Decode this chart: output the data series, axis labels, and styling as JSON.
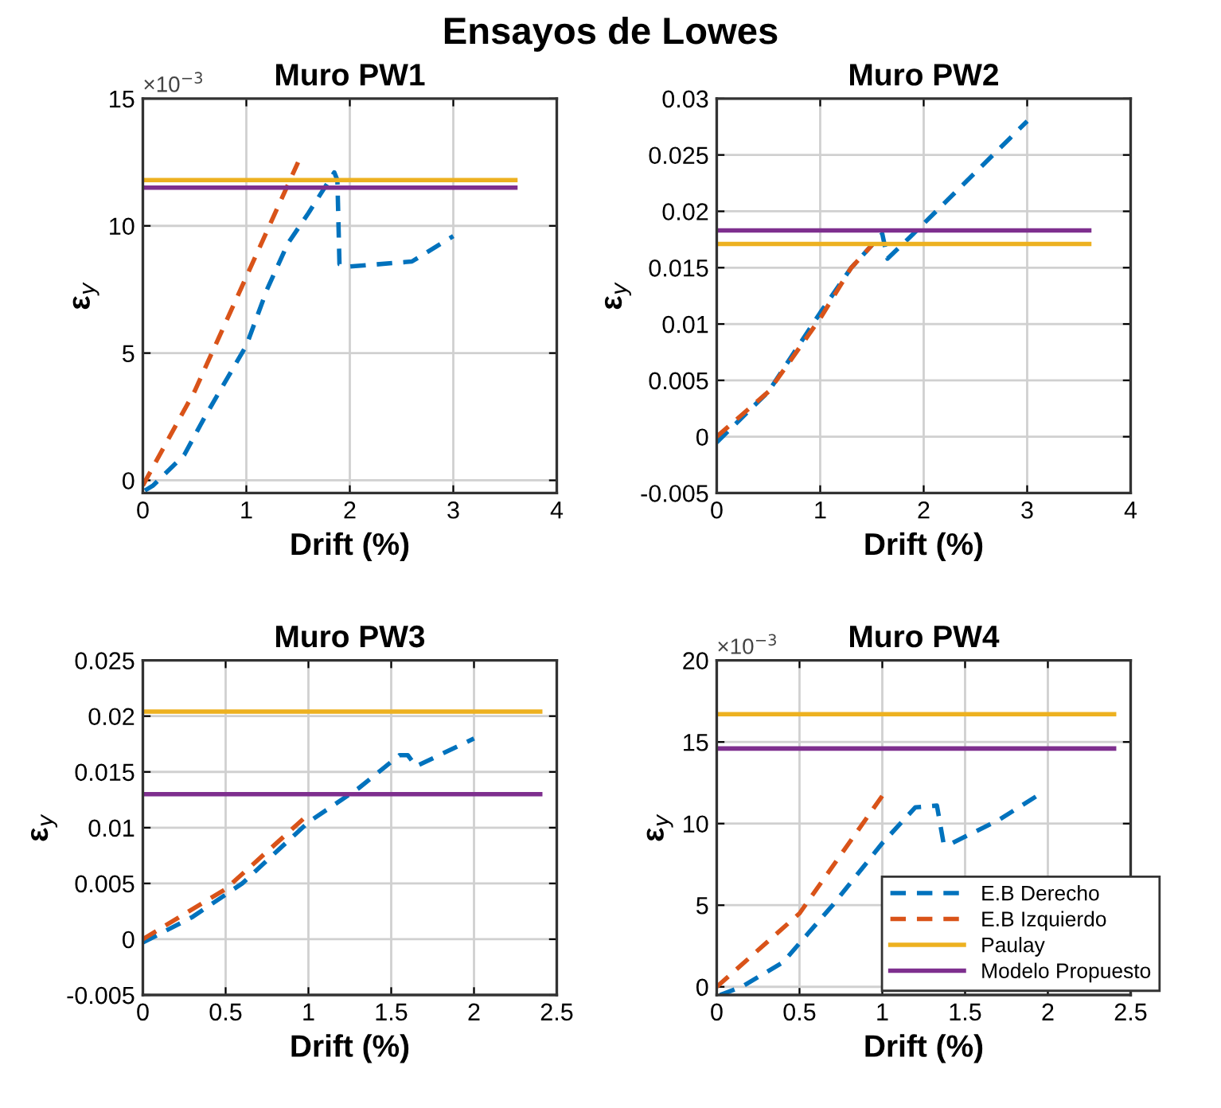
{
  "chart_data": [
    {
      "type": "line",
      "title": "Muro PW1",
      "xlabel": "Drift (%)",
      "ylabel": "ε$_{y}$",
      "annotations": [
        "Ensayos de Lowes",
        "×10$^{−3}$"
      ],
      "xlim": [
        0,
        4
      ],
      "xticks": [
        0,
        1,
        2,
        3,
        4
      ],
      "ylim": [
        -0.5,
        15
      ],
      "yticks": [
        0,
        5,
        10,
        15
      ],
      "grid": true,
      "series": [
        {
          "color": "#0072bd",
          "line_style": "dashed",
          "x": [
            0.02,
            0.1,
            0.4,
            0.6,
            1.0,
            1.2,
            1.4,
            1.6,
            1.85,
            1.88,
            1.9,
            2.0,
            2.6,
            3.0
          ],
          "values": [
            -0.4,
            -0.2,
            1,
            2.5,
            5.3,
            7.5,
            9.3,
            10.5,
            12.1,
            11.8,
            8.5,
            8.4,
            8.6,
            9.6
          ]
        },
        {
          "color": "#d95319",
          "line_style": "dashed",
          "x": [
            0,
            0.5,
            1.0,
            1.5
          ],
          "values": [
            -0.2,
            3.5,
            8,
            12.5
          ]
        },
        {
          "color": "#edb120",
          "line_style": "solid",
          "x": [
            0,
            3.6
          ],
          "values": [
            11.8,
            11.8
          ]
        },
        {
          "color": "#7e2f8e",
          "line_style": "solid",
          "x": [
            0,
            3.6
          ],
          "values": [
            11.5,
            11.5
          ]
        }
      ]
    },
    {
      "type": "line",
      "title": "Muro PW2",
      "xlabel": "Drift (%)",
      "ylabel": "ε$_{y}$",
      "xlim": [
        0,
        4
      ],
      "xticks": [
        0,
        1,
        2,
        3,
        4
      ],
      "ylim": [
        -0.005,
        0.03
      ],
      "yticks": [
        -0.005,
        0,
        0.005,
        0.01,
        0.015,
        0.02,
        0.025,
        0.03
      ],
      "grid": true,
      "series": [
        {
          "color": "#0072bd",
          "line_style": "dashed",
          "x": [
            0,
            0.5,
            1.0,
            1.3,
            1.55,
            1.6,
            1.65,
            1.9,
            3.0
          ],
          "values": [
            -0.0005,
            0.004,
            0.011,
            0.015,
            0.0175,
            0.018,
            0.0158,
            0.018,
            0.028
          ]
        },
        {
          "color": "#d95319",
          "line_style": "dashed",
          "x": [
            0,
            0.5,
            1.0,
            1.3,
            1.5
          ],
          "values": [
            0,
            0.004,
            0.0105,
            0.015,
            0.017
          ]
        },
        {
          "color": "#edb120",
          "line_style": "solid",
          "x": [
            0,
            3.6
          ],
          "values": [
            0.0171,
            0.0171
          ]
        },
        {
          "color": "#7e2f8e",
          "line_style": "solid",
          "x": [
            0,
            3.6
          ],
          "values": [
            0.0183,
            0.0183
          ]
        }
      ]
    },
    {
      "type": "line",
      "title": "Muro PW3",
      "xlabel": "Drift (%)",
      "ylabel": "ε$_{y}$",
      "xlim": [
        0,
        2.5
      ],
      "xticks": [
        0,
        0.5,
        1,
        1.5,
        2,
        2.5
      ],
      "ylim": [
        -0.005,
        0.025
      ],
      "yticks": [
        -0.005,
        0,
        0.005,
        0.01,
        0.015,
        0.02,
        0.025
      ],
      "grid": true,
      "series": [
        {
          "color": "#0072bd",
          "line_style": "dashed",
          "x": [
            0,
            0.3,
            0.6,
            1.0,
            1.3,
            1.55,
            1.6,
            1.65,
            2.0
          ],
          "values": [
            -0.0003,
            0.002,
            0.005,
            0.0105,
            0.0135,
            0.0165,
            0.0165,
            0.0155,
            0.018
          ]
        },
        {
          "color": "#d95319",
          "line_style": "dashed",
          "x": [
            0,
            0.5,
            1.0
          ],
          "values": [
            0,
            0.0045,
            0.0112
          ]
        },
        {
          "color": "#edb120",
          "line_style": "solid",
          "x": [
            0,
            2.4
          ],
          "values": [
            0.0204,
            0.0204
          ]
        },
        {
          "color": "#7e2f8e",
          "line_style": "solid",
          "x": [
            0,
            2.4
          ],
          "values": [
            0.013,
            0.013
          ]
        }
      ]
    },
    {
      "type": "line",
      "title": "Muro PW4",
      "xlabel": "Drift (%)",
      "ylabel": "ε$_{y}$",
      "annotations": [
        "×10$^{−3}$"
      ],
      "xlim": [
        0,
        2.5
      ],
      "xticks": [
        0,
        0.5,
        1,
        1.5,
        2,
        2.5
      ],
      "ylim": [
        -0.5,
        20
      ],
      "yticks": [
        0,
        5,
        10,
        15,
        20
      ],
      "grid": true,
      "legend": "bottom right",
      "series": [
        {
          "name": "E.B Derecho",
          "color": "#0072bd",
          "line_style": "dashed",
          "x": [
            0.02,
            0.15,
            0.4,
            0.7,
            1.0,
            1.2,
            1.33,
            1.37,
            1.4,
            1.7,
            1.95
          ],
          "values": [
            -0.5,
            0,
            1.5,
            5,
            8.8,
            11,
            11.1,
            8.8,
            8.7,
            10.2,
            11.8
          ]
        },
        {
          "name": "E.B Izquierdo",
          "color": "#d95319",
          "line_style": "dashed",
          "x": [
            0,
            0.5,
            1.0
          ],
          "values": [
            0,
            4.5,
            11.7
          ]
        },
        {
          "name": "Paulay",
          "color": "#edb120",
          "line_style": "solid",
          "x": [
            0,
            2.4
          ],
          "values": [
            16.7,
            16.7
          ]
        },
        {
          "name": "Modelo Propuesto",
          "color": "#7e2f8e",
          "line_style": "solid",
          "x": [
            0,
            2.4
          ],
          "values": [
            14.6,
            14.6
          ]
        }
      ]
    }
  ]
}
